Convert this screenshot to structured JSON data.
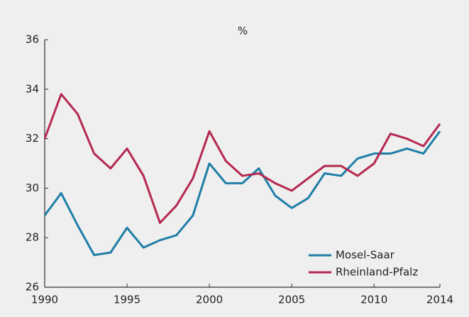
{
  "chart_data": {
    "type": "line",
    "title": "%",
    "x": [
      1990,
      1991,
      1992,
      1993,
      1994,
      1995,
      1996,
      1997,
      1998,
      1999,
      2000,
      2001,
      2002,
      2003,
      2004,
      2005,
      2006,
      2007,
      2008,
      2009,
      2010,
      2011,
      2012,
      2013,
      2014
    ],
    "series": [
      {
        "name": "Mosel-Saar",
        "color": "#1f7ea6",
        "values": [
          28.9,
          29.8,
          28.5,
          27.3,
          27.4,
          28.4,
          27.6,
          27.9,
          28.1,
          28.9,
          31.0,
          30.2,
          30.2,
          30.8,
          29.7,
          29.2,
          29.6,
          30.6,
          30.5,
          31.2,
          31.4,
          31.4,
          31.6,
          31.4,
          32.3
        ]
      },
      {
        "name": "Rheinland-Pfalz",
        "color": "#b5284f",
        "values": [
          32.0,
          33.8,
          33.0,
          31.4,
          30.8,
          31.6,
          30.5,
          28.6,
          29.3,
          30.4,
          32.3,
          31.1,
          30.5,
          30.6,
          30.2,
          29.9,
          30.4,
          30.9,
          30.9,
          30.5,
          31.0,
          32.2,
          32.0,
          31.7,
          32.6
        ]
      }
    ],
    "xlim": [
      1990,
      2014
    ],
    "xticks": [
      1990,
      1995,
      2000,
      2005,
      2010,
      2014
    ],
    "ylim": [
      26,
      36
    ],
    "yticks": [
      26,
      28,
      30,
      32,
      34,
      36
    ],
    "legend": "lower right"
  }
}
